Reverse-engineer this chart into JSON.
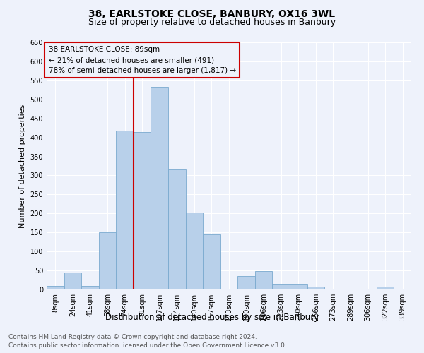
{
  "title": "38, EARLSTOKE CLOSE, BANBURY, OX16 3WL",
  "subtitle": "Size of property relative to detached houses in Banbury",
  "xlabel": "Distribution of detached houses by size in Banbury",
  "ylabel": "Number of detached properties",
  "categories": [
    "8sqm",
    "24sqm",
    "41sqm",
    "58sqm",
    "74sqm",
    "91sqm",
    "107sqm",
    "124sqm",
    "140sqm",
    "157sqm",
    "173sqm",
    "190sqm",
    "206sqm",
    "223sqm",
    "240sqm",
    "256sqm",
    "273sqm",
    "289sqm",
    "306sqm",
    "322sqm",
    "339sqm"
  ],
  "values": [
    10,
    45,
    10,
    150,
    418,
    415,
    533,
    315,
    203,
    145,
    0,
    35,
    48,
    15,
    15,
    8,
    0,
    0,
    0,
    8,
    0
  ],
  "bar_color": "#b8d0ea",
  "bar_edge_color": "#7aaacf",
  "vline_color": "#cc0000",
  "annotation_title": "38 EARLSTOKE CLOSE: 89sqm",
  "annotation_line2": "← 21% of detached houses are smaller (491)",
  "annotation_line3": "78% of semi-detached houses are larger (1,817) →",
  "annotation_box_color": "#cc0000",
  "ylim": [
    0,
    650
  ],
  "yticks": [
    0,
    50,
    100,
    150,
    200,
    250,
    300,
    350,
    400,
    450,
    500,
    550,
    600,
    650
  ],
  "footer_line1": "Contains HM Land Registry data © Crown copyright and database right 2024.",
  "footer_line2": "Contains public sector information licensed under the Open Government Licence v3.0.",
  "bg_color": "#eef2fb",
  "grid_color": "#ffffff",
  "title_fontsize": 10,
  "subtitle_fontsize": 9,
  "ylabel_fontsize": 8,
  "xlabel_fontsize": 8.5,
  "tick_fontsize": 7,
  "annotation_fontsize": 7.5,
  "footer_fontsize": 6.5
}
